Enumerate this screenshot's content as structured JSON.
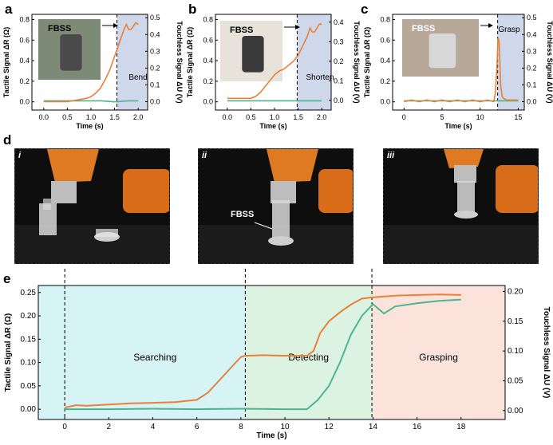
{
  "panel_letters": [
    "a",
    "b",
    "c",
    "d",
    "e"
  ],
  "colors": {
    "tactile": "#4cb58f",
    "touchless": "#e8803a",
    "phase_bg": "#cfd7ea",
    "searching_bg": "#d6f3f6",
    "detecting_bg": "#ddf3e1",
    "grasping_bg": "#fbe3db"
  },
  "photos_d": {
    "labels": [
      "i",
      "ii",
      "iii"
    ],
    "fbss_label": "FBSS"
  },
  "chart_data": [
    {
      "type": "line",
      "panel": "a",
      "inset_label": "FBSS",
      "phase_label": "Bend",
      "xlabel": "Time (s)",
      "ylabel_left": "Tactile Signal ΔR (Ω)",
      "ylabel_right": "Touchless Signal ΔU (V)",
      "xlim": [
        -0.25,
        2.2
      ],
      "ylim_left": [
        -0.08,
        0.85
      ],
      "ylim_right": [
        -0.05,
        0.52
      ],
      "xticks": [
        "0.0",
        "0.5",
        "1.0",
        "1.5",
        "2.0"
      ],
      "xtick_values": [
        0,
        0.5,
        1.0,
        1.5,
        2.0
      ],
      "yticks_left": [
        "0.0",
        "0.2",
        "0.4",
        "0.6",
        "0.8"
      ],
      "ytick_left_values": [
        0,
        0.2,
        0.4,
        0.6,
        0.8
      ],
      "yticks_right": [
        "0.0",
        "0.1",
        "0.2",
        "0.3",
        "0.4",
        "0.5"
      ],
      "ytick_right_values": [
        0,
        0.1,
        0.2,
        0.3,
        0.4,
        0.5
      ],
      "marker_x": 1.55,
      "series": [
        {
          "axis": "left",
          "x": [
            0,
            0.3,
            0.6,
            0.9,
            1.2,
            1.5,
            1.8,
            2.0
          ],
          "y": [
            0.01,
            0.01,
            0.01,
            0.01,
            0.01,
            0.0,
            0.01,
            0.01
          ]
        },
        {
          "axis": "right",
          "x": [
            0,
            0.3,
            0.5,
            0.7,
            0.9,
            1.0,
            1.1,
            1.2,
            1.3,
            1.4,
            1.5,
            1.6,
            1.7,
            1.75,
            1.8,
            1.85,
            1.9,
            1.95,
            2.0
          ],
          "y": [
            0.0,
            0.0,
            0.0,
            0.01,
            0.02,
            0.03,
            0.05,
            0.08,
            0.13,
            0.19,
            0.27,
            0.35,
            0.43,
            0.46,
            0.43,
            0.43,
            0.45,
            0.47,
            0.46
          ]
        }
      ]
    },
    {
      "type": "line",
      "panel": "b",
      "inset_label": "FBSS",
      "phase_label": "Shorten",
      "xlabel": "Time (s)",
      "ylabel_left": "Tactile Signal ΔR (Ω)",
      "ylabel_right": "Touchless Signal ΔU (V)",
      "xlim": [
        -0.25,
        2.2
      ],
      "ylim_left": [
        -0.08,
        0.85
      ],
      "ylim_right": [
        -0.05,
        0.44
      ],
      "xticks": [
        "0.0",
        "0.5",
        "1.0",
        "1.5",
        "2.0"
      ],
      "xtick_values": [
        0,
        0.5,
        1.0,
        1.5,
        2.0
      ],
      "yticks_left": [
        "0.0",
        "0.2",
        "0.4",
        "0.6",
        "0.8"
      ],
      "ytick_left_values": [
        0,
        0.2,
        0.4,
        0.6,
        0.8
      ],
      "yticks_right": [
        "0.0",
        "0.1",
        "0.2",
        "0.3",
        "0.4"
      ],
      "ytick_right_values": [
        0,
        0.1,
        0.2,
        0.3,
        0.4
      ],
      "marker_x": 1.48,
      "series": [
        {
          "axis": "left",
          "x": [
            0,
            0.3,
            0.6,
            0.9,
            1.2,
            1.5,
            1.8,
            2.0
          ],
          "y": [
            0.01,
            0.01,
            0.01,
            0.01,
            0.01,
            0.01,
            0.01,
            0.01
          ]
        },
        {
          "axis": "right",
          "x": [
            0,
            0.3,
            0.5,
            0.6,
            0.7,
            0.8,
            0.9,
            1.0,
            1.1,
            1.2,
            1.3,
            1.4,
            1.5,
            1.6,
            1.7,
            1.75,
            1.8,
            1.85,
            1.9,
            1.95,
            2.0
          ],
          "y": [
            0.01,
            0.01,
            0.01,
            0.02,
            0.04,
            0.07,
            0.1,
            0.13,
            0.15,
            0.16,
            0.18,
            0.2,
            0.23,
            0.28,
            0.33,
            0.37,
            0.35,
            0.35,
            0.37,
            0.39,
            0.39
          ]
        }
      ]
    },
    {
      "type": "line",
      "panel": "c",
      "inset_label": "FBSS",
      "phase_label": "Grasp",
      "xlabel": "Time (s)",
      "ylabel_left": "Tactile Signal ΔR (Ω)",
      "ylabel_right": "Touchless Signal ΔU (V)",
      "xlim": [
        -1.5,
        15.8
      ],
      "ylim_left": [
        -0.08,
        0.85
      ],
      "ylim_right": [
        -0.05,
        0.52
      ],
      "xticks": [
        "0",
        "5",
        "10",
        "15"
      ],
      "xtick_values": [
        0,
        5,
        10,
        15
      ],
      "yticks_left": [
        "0.0",
        "0.2",
        "0.4",
        "0.6",
        "0.8"
      ],
      "ytick_left_values": [
        0,
        0.2,
        0.4,
        0.6,
        0.8
      ],
      "yticks_right": [
        "0.0",
        "0.1",
        "0.2",
        "0.3",
        "0.4",
        "0.5"
      ],
      "ytick_right_values": [
        0,
        0.1,
        0.2,
        0.3,
        0.4,
        0.5
      ],
      "marker_x": 12.3,
      "series": [
        {
          "axis": "left",
          "x": [
            0,
            2,
            4,
            6,
            8,
            10,
            12,
            13,
            14,
            15
          ],
          "y": [
            0.01,
            0.01,
            0.01,
            0.01,
            0.01,
            0.01,
            0.01,
            0.01,
            0.01,
            0.01
          ]
        },
        {
          "axis": "right",
          "x": [
            0,
            1,
            2,
            3,
            4,
            5,
            6,
            7,
            8,
            9,
            10,
            11,
            11.8,
            12.0,
            12.2,
            12.35,
            12.5,
            12.7,
            12.9,
            13.1,
            13.5,
            14,
            15
          ],
          "y": [
            0.0,
            0.01,
            0.0,
            0.01,
            0.0,
            0.01,
            0.0,
            0.01,
            0.0,
            0.01,
            0.0,
            0.01,
            0.0,
            0.05,
            0.2,
            0.38,
            0.36,
            0.1,
            0.03,
            0.02,
            0.01,
            0.01,
            0.01
          ]
        }
      ]
    },
    {
      "type": "line",
      "panel": "e",
      "xlabel": "Time (s)",
      "ylabel_left": "Tactile Signal ΔR (Ω)",
      "ylabel_right": "Touchless Signal ΔU (V)",
      "xlim": [
        -1.2,
        20.0
      ],
      "ylim_left": [
        -0.022,
        0.265
      ],
      "ylim_right": [
        -0.015,
        0.21
      ],
      "xticks": [
        "0",
        "2",
        "4",
        "6",
        "8",
        "10",
        "12",
        "14",
        "16",
        "18"
      ],
      "xtick_values": [
        0,
        2,
        4,
        6,
        8,
        10,
        12,
        14,
        16,
        18
      ],
      "yticks_left": [
        "0.00",
        "0.05",
        "0.10",
        "0.15",
        "0.20",
        "0.25"
      ],
      "ytick_left_values": [
        0,
        0.05,
        0.1,
        0.15,
        0.2,
        0.25
      ],
      "yticks_right": [
        "0.00",
        "0.05",
        "0.10",
        "0.15",
        "0.20"
      ],
      "ytick_right_values": [
        0,
        0.05,
        0.1,
        0.15,
        0.2
      ],
      "phases": [
        {
          "label": "Searching",
          "start": 0,
          "end": 8.2
        },
        {
          "label": "Detecting",
          "start": 8.2,
          "end": 13.95
        },
        {
          "label": "Grasping",
          "start": 13.95,
          "end": 19.6
        }
      ],
      "series": [
        {
          "axis": "left",
          "x": [
            0,
            2,
            4,
            6,
            8,
            10,
            11,
            11.5,
            12,
            12.5,
            13,
            13.5,
            14,
            14.5,
            15,
            16,
            17,
            18
          ],
          "y": [
            0.0,
            0.0,
            0.001,
            0.0,
            0.001,
            0.0,
            0.0,
            0.02,
            0.05,
            0.1,
            0.16,
            0.2,
            0.225,
            0.205,
            0.22,
            0.227,
            0.232,
            0.235
          ]
        },
        {
          "axis": "right",
          "x": [
            0,
            0.5,
            1,
            2,
            3,
            4,
            5,
            6,
            6.5,
            7,
            7.5,
            8,
            8.2,
            9,
            10,
            11,
            11.3,
            11.6,
            12,
            12.5,
            13,
            13.5,
            14,
            15,
            16,
            17,
            18
          ],
          "y": [
            0.005,
            0.009,
            0.008,
            0.01,
            0.012,
            0.013,
            0.014,
            0.018,
            0.03,
            0.05,
            0.07,
            0.09,
            0.092,
            0.093,
            0.092,
            0.092,
            0.1,
            0.13,
            0.15,
            0.165,
            0.178,
            0.188,
            0.19,
            0.193,
            0.194,
            0.195,
            0.194
          ]
        }
      ]
    }
  ]
}
